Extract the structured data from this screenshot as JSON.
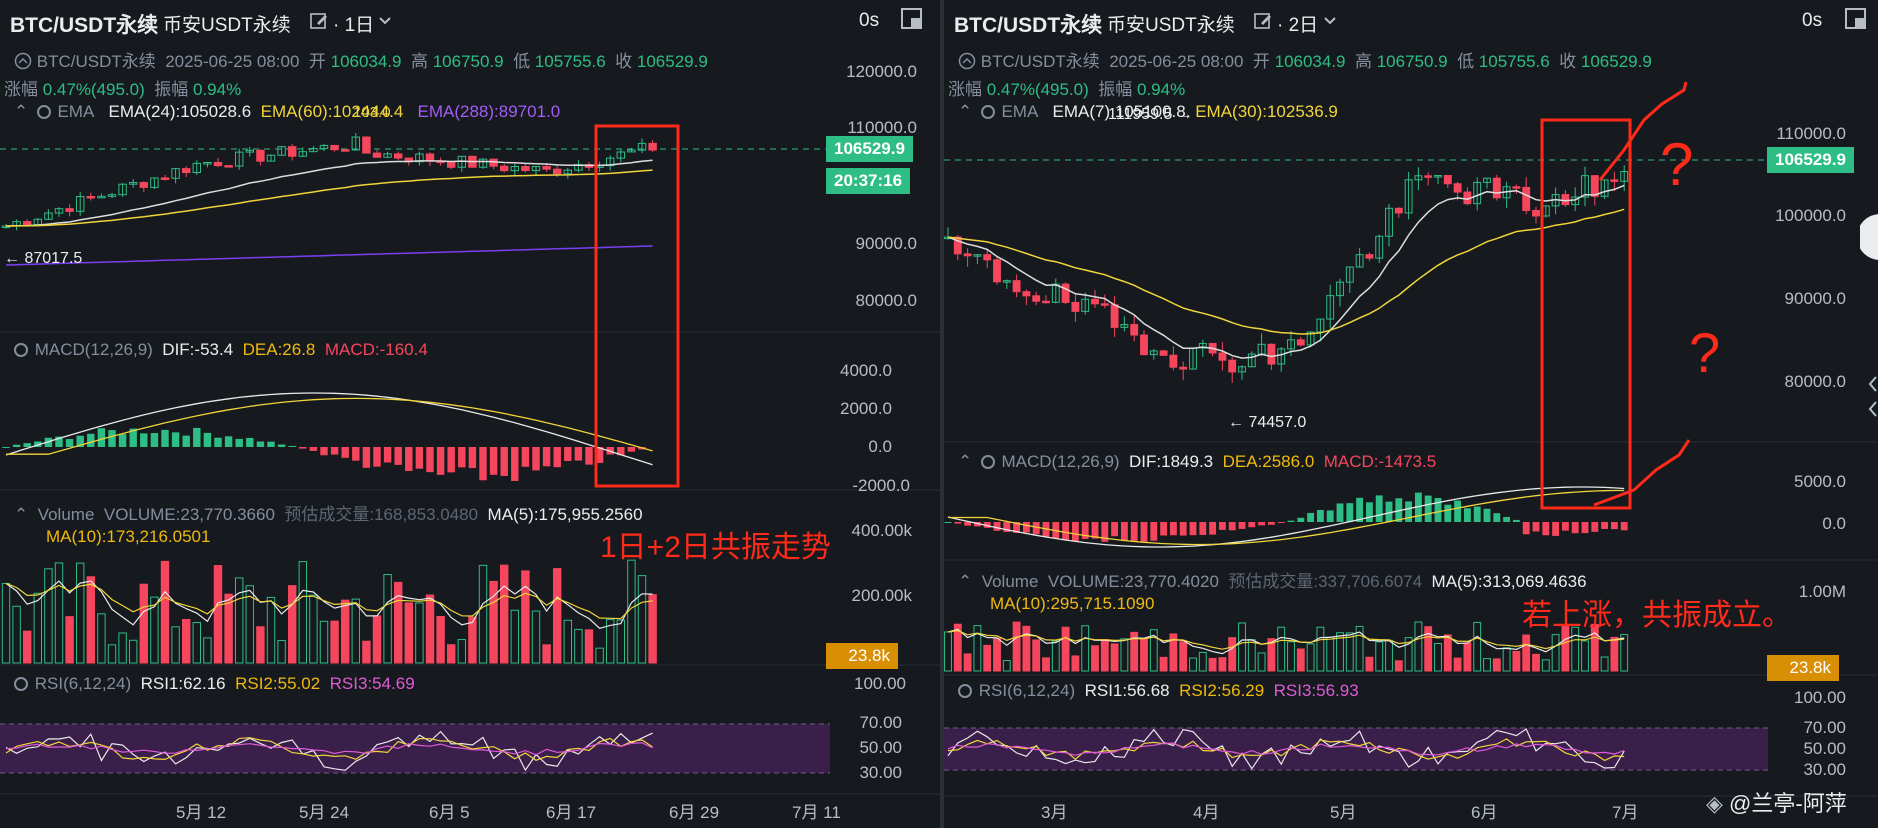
{
  "colors": {
    "up": "#2ebd85",
    "down": "#f6465d",
    "ema_short": "#dcdcdc",
    "ema_mid": "#f0d43a",
    "ema_long": "#7b3ff2",
    "rsi1": "#e8e8e8",
    "rsi2": "#f0d43a",
    "rsi3": "#e05ad8",
    "annotation": "#ff2a1a"
  },
  "left": {
    "symbol": "BTC/USDT永续",
    "market": "币安USDT永续",
    "interval": "· 1日",
    "timer": "0s",
    "info": {
      "symbol": "BTC/USDT永续",
      "date": "2025-06-25 08:00",
      "open_label": "开",
      "open": "106034.9",
      "high_label": "高",
      "high": "106750.9",
      "low_label": "低",
      "low": "105755.6",
      "close_label": "收",
      "close": "106529.9",
      "change_label": "涨幅",
      "change": "0.47%(495.0)",
      "amp_label": "振幅",
      "amp": "0.94%"
    },
    "ema": {
      "label": "EMA",
      "a": "EMA(24):105028.6",
      "b": "EMA(60):102444.4",
      "c": "EMA(288):89701.0",
      "b_overlap": "103.0"
    },
    "macd": {
      "label": "MACD(12,26,9)",
      "dif": "DIF:-53.4",
      "dea": "DEA:26.8",
      "macd": "MACD:-160.4"
    },
    "volume": {
      "label": "Volume",
      "vol": "VOLUME:23,770.3660",
      "est": "预估成交量:168,853.0480",
      "ma5": "MA(5):175,955.2560",
      "ma10": "MA(10):173,216.0501"
    },
    "rsi": {
      "label": "RSI(6,12,24)",
      "r1": "RSI1:62.16",
      "r2": "RSI2:55.02",
      "r3": "RSI3:54.69"
    },
    "price_axis": [
      "120000.0",
      "110000.0",
      "90000.0",
      "80000.0"
    ],
    "macd_axis": [
      "4000.0",
      "2000.0",
      "0.0",
      "-2000.0"
    ],
    "vol_axis": [
      "400.00k",
      "200.00k"
    ],
    "rsi_axis": [
      "100.00",
      "70.00",
      "50.00",
      "30.00"
    ],
    "last_price": "106529.9",
    "countdown": "20:37:16",
    "vol_tag": "23.8k",
    "low_marker": "87017.5",
    "x_labels": [
      "5月 12",
      "5月 24",
      "6月 5",
      "6月 17",
      "6月 29",
      "7月 11"
    ],
    "annotation": "1日+2日共振走势"
  },
  "right": {
    "symbol": "BTC/USDT永续",
    "market": "币安USDT永续",
    "interval": "· 2日",
    "timer": "0s",
    "info": {
      "symbol": "BTC/USDT永续",
      "date": "2025-06-25 08:00",
      "open_label": "开",
      "open": "106034.9",
      "high_label": "高",
      "high": "106750.9",
      "low_label": "低",
      "low": "105755.6",
      "close_label": "收",
      "close": "106529.9",
      "change_label": "涨幅",
      "change": "0.47%(495.0)",
      "amp_label": "振幅",
      "amp": "0.94%"
    },
    "ema": {
      "label": "EMA",
      "a": "EMA(7):105100.8",
      "b": "EMA(30):102536.9"
    },
    "macd": {
      "label": "MACD(12,26,9)",
      "dif": "DIF:1849.3",
      "dea": "DEA:2586.0",
      "macd": "MACD:-1473.5"
    },
    "volume": {
      "label": "Volume",
      "vol": "VOLUME:23,770.4020",
      "est": "预估成交量:337,706.6074",
      "ma5": "MA(5):313,069.4636",
      "ma10": "MA(10):295,715.1090"
    },
    "rsi": {
      "label": "RSI(6,12,24)",
      "r1": "RSI1:56.68",
      "r2": "RSI2:56.29",
      "r3": "RSI3:56.93"
    },
    "price_axis": [
      "110000.0",
      "100000.0",
      "90000.0",
      "80000.0"
    ],
    "macd_axis": [
      "5000.0",
      "0.0"
    ],
    "vol_axis": [
      "1.00M"
    ],
    "rsi_axis": [
      "100.00",
      "70.00",
      "50.00",
      "30.00"
    ],
    "last_price": "106529.9",
    "vol_tag": "23.8k",
    "high_marker": "111959.5",
    "low_marker": "74457.0",
    "x_labels": [
      "3月",
      "4月",
      "5月",
      "6月",
      "7月"
    ],
    "annotation": "若上涨，共振成立。",
    "question": "?",
    "watermark": "@兰亭-阿萍"
  }
}
